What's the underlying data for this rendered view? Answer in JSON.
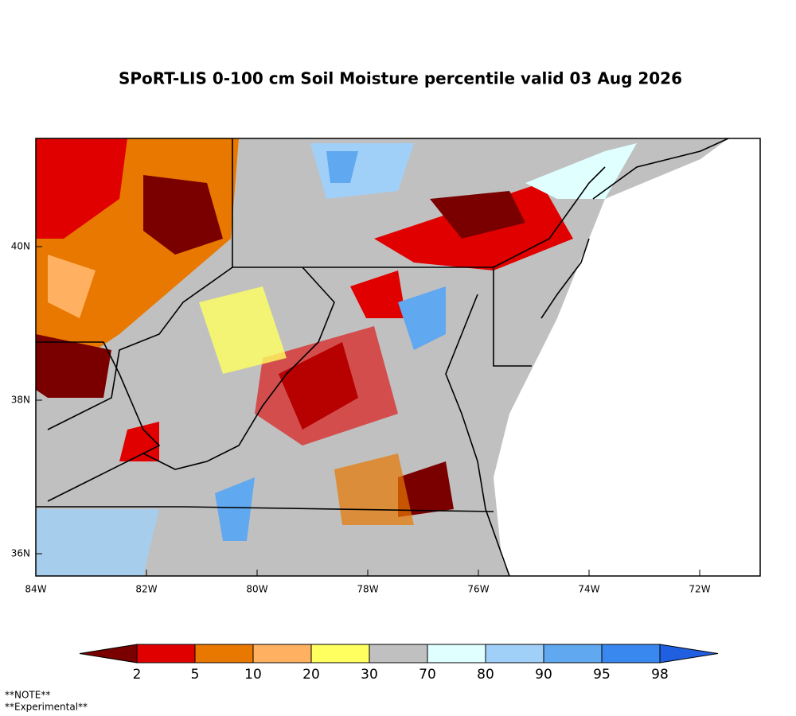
{
  "header": {
    "title": "SPoRT-LIS 0-100 cm Soil Moisture percentile valid 03 Aug 2026"
  },
  "map": {
    "lon_labels": [
      "84W",
      "82W",
      "80W",
      "78W",
      "76W",
      "74W",
      "72W"
    ],
    "lat_labels": [
      "40N",
      "38N",
      "36N"
    ]
  },
  "colorbar": {
    "labels": [
      "2",
      "5",
      "10",
      "20",
      "30",
      "70",
      "80",
      "90",
      "95",
      "98"
    ],
    "colors": [
      "#7a0000",
      "#e00000",
      "#e87800",
      "#ffb060",
      "#ffff60",
      "#c0c0c0",
      "#e0ffff",
      "#a0d0f8",
      "#60a8f0",
      "#3888f0",
      "#2060e0"
    ]
  },
  "notes": [
    "**NOTE**",
    "**Experimental**"
  ]
}
